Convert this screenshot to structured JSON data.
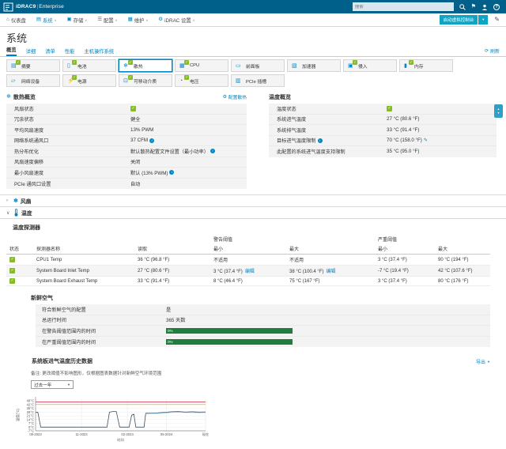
{
  "colors": {
    "accent": "#007db8",
    "topbar": "#00608a",
    "ok_green": "#86bc25",
    "bar_green": "#1f7e3d",
    "console_teal": "#0fa3c4"
  },
  "topbar": {
    "brand": "iDRAC9",
    "brand_sep": "|",
    "brand_suffix": "Enterprise",
    "search_placeholder": "搜索"
  },
  "menu": {
    "items": [
      {
        "label": "仪表盘",
        "icon": "home",
        "caret": false,
        "active": false
      },
      {
        "label": "系统",
        "icon": "system",
        "caret": true,
        "active": true
      },
      {
        "label": "存储",
        "icon": "storage",
        "caret": true,
        "active": false
      },
      {
        "label": "配置",
        "icon": "config",
        "caret": true,
        "active": false
      },
      {
        "label": "维护",
        "icon": "maintenance",
        "caret": true,
        "active": false
      },
      {
        "label": "iDRAC 设置",
        "icon": "settings",
        "caret": true,
        "active": false
      }
    ],
    "console_button": "启动虚拟控制台"
  },
  "page": {
    "title": "系统",
    "refresh_label": "刷新"
  },
  "tabs": [
    {
      "label": "概览",
      "active": true
    },
    {
      "label": "详细",
      "active": false
    },
    {
      "label": "清单",
      "active": false
    },
    {
      "label": "性能",
      "active": false
    },
    {
      "label": "主机操作系统",
      "active": false
    }
  ],
  "tiles": [
    [
      {
        "label": "摘要",
        "icon": "summary",
        "checked": true,
        "selected": false
      },
      {
        "label": "电池",
        "icon": "battery",
        "checked": true,
        "selected": false
      },
      {
        "label": "散热",
        "icon": "cooling",
        "checked": true,
        "selected": true
      },
      {
        "label": "CPU",
        "icon": "cpu",
        "checked": true,
        "selected": false
      },
      {
        "label": "前面板",
        "icon": "front-panel",
        "checked": false,
        "selected": false
      },
      {
        "label": "加速器",
        "icon": "accelerator",
        "checked": false,
        "selected": false
      },
      {
        "label": "侵入",
        "icon": "intrusion",
        "checked": true,
        "selected": false
      },
      {
        "label": "内存",
        "icon": "memory",
        "checked": true,
        "selected": false
      }
    ],
    [
      {
        "label": "网络设备",
        "icon": "network",
        "checked": false,
        "selected": false
      },
      {
        "label": "电源",
        "icon": "power",
        "checked": true,
        "selected": false
      },
      {
        "label": "可移动介质",
        "icon": "removable-media",
        "checked": true,
        "selected": false
      },
      {
        "label": "电压",
        "icon": "voltage",
        "checked": true,
        "selected": false
      },
      {
        "label": "PCIe 插槽",
        "icon": "pcie",
        "checked": false,
        "selected": false
      }
    ]
  ],
  "cooling_overview": {
    "title": "散热概览",
    "action": "配置散热",
    "rows": [
      {
        "label": "风扇状态",
        "status": true
      },
      {
        "label": "冗余状态",
        "value": "健全"
      },
      {
        "label": "平均风扇速度",
        "value": "13% PWM"
      },
      {
        "label": "网络系统通风口",
        "value": "37 CFM",
        "info": true
      },
      {
        "label": "热分布优化",
        "value": "默认散热配置文件设置（最小功率）",
        "info": true
      },
      {
        "label": "风扇速度偏移",
        "value": "关闭"
      },
      {
        "label": "最小风扇速度",
        "value": "默认 (13% PWM)",
        "info": true
      },
      {
        "label": "PCIe 通风口设置",
        "value": "自动"
      }
    ]
  },
  "temperature_overview": {
    "title": "温度概览",
    "rows": [
      {
        "label": "温度状态",
        "status": true
      },
      {
        "label": "系统进气温度",
        "value": "27 °C (80.6 °F)"
      },
      {
        "label": "系统排气温度",
        "value": "33 °C (91.4 °F)"
      },
      {
        "label": "目标进气温度限制",
        "label_info": true,
        "value": "70 °C (158.0 °F)",
        "edit": true
      },
      {
        "label": "此配置的系统进气温度支持限制",
        "value": "35 °C (95.0 °F)"
      }
    ]
  },
  "collapsibles": {
    "fans": "风扇",
    "temperature": "温度"
  },
  "probes": {
    "title": "温度探测器",
    "headers": {
      "status": "状态",
      "name": "探测器名称",
      "reading": "读取",
      "warning_group": "警告阈值",
      "critical_group": "严重阈值",
      "min": "最小",
      "max": "最大"
    },
    "edit_label": "编辑",
    "rows": [
      {
        "name": "CPU1 Temp",
        "reading": "36 °C (96.8 °F)",
        "warn_min": "不适用",
        "warn_min_edit": false,
        "warn_max": "不适用",
        "warn_max_edit": false,
        "crit_min": "3 °C (37.4 °F)",
        "crit_max": "90 °C (194 °F)"
      },
      {
        "name": "System Board Inlet Temp",
        "reading": "27 °C (80.6 °F)",
        "warn_min": "3 °C (37.4 °F)",
        "warn_min_edit": true,
        "warn_max": "38 °C (100.4 °F)",
        "warn_max_edit": true,
        "crit_min": "-7 °C (19.4 °F)",
        "crit_max": "42 °C (107.6 °F)"
      },
      {
        "name": "System Board Exhaust Temp",
        "reading": "33 °C (91.4 °F)",
        "warn_min": "8 °C (46.4 °F)",
        "warn_min_edit": false,
        "warn_max": "75 °C (167 °F)",
        "warn_max_edit": false,
        "crit_min": "3 °C (37.4 °F)",
        "crit_max": "80 °C (176 °F)"
      }
    ]
  },
  "fresh_air": {
    "title": "新鲜空气",
    "rows": [
      {
        "label": "符合新鲜空气的配置",
        "value": "是"
      },
      {
        "label": "总运行时间",
        "value": "365 天数"
      },
      {
        "label": "在警告阈值范围内的时间",
        "bar": "0%"
      },
      {
        "label": "在严重阈值范围内的时间",
        "bar": "0%"
      }
    ]
  },
  "history": {
    "title": "系统板进气温度历史数据",
    "export_label": "导出",
    "note": "备注: 更改阈值不影响图形，仅根据图表数据针对新鲜空气环境范围",
    "range_value": "过去一年"
  },
  "chart_data": {
    "type": "line",
    "title": "系统板进气温度历史数据",
    "xlabel": "时间",
    "ylabel": "温度(°C)",
    "x_ticks": [
      "09-2023",
      "11-2023",
      "02-2024",
      "05-2024",
      "现在"
    ],
    "x_tick_pos": [
      0,
      0.27,
      0.54,
      0.77,
      1
    ],
    "y_ticks": [
      49,
      42,
      35,
      28,
      21,
      14,
      7,
      0,
      -7
    ],
    "ylim": [
      -7,
      52
    ],
    "grid": true,
    "legend": "none",
    "thresholds": [
      {
        "name": "critical-max",
        "value": 47,
        "color": "#cc2936"
      },
      {
        "name": "warning-max",
        "value": 42,
        "color": "#f2a33c"
      }
    ],
    "series": [
      {
        "name": "inlet-temp",
        "color": "#3a4e5f",
        "points": [
          [
            0,
            27
          ],
          [
            0.013,
            28
          ],
          [
            0.03,
            0
          ],
          [
            0.42,
            0
          ],
          [
            0.435,
            28
          ],
          [
            0.455,
            29
          ],
          [
            0.475,
            29
          ],
          [
            0.495,
            0
          ],
          [
            0.55,
            0
          ],
          [
            0.565,
            22
          ],
          [
            0.578,
            24
          ],
          [
            0.59,
            0
          ],
          [
            0.638,
            0
          ],
          [
            0.648,
            25.8
          ],
          [
            0.68,
            26
          ],
          [
            0.72,
            26.5
          ],
          [
            0.76,
            27.5
          ],
          [
            0.8,
            28.5
          ],
          [
            0.84,
            29
          ],
          [
            0.88,
            28
          ],
          [
            0.92,
            28.5
          ],
          [
            0.96,
            28
          ],
          [
            1,
            28.3
          ]
        ]
      },
      {
        "name": "inlet-temp-secondary",
        "color": "#8fc3e0",
        "points": [
          [
            0.648,
            24.8
          ],
          [
            0.68,
            25.2
          ],
          [
            0.72,
            25.6
          ],
          [
            0.76,
            26.5
          ],
          [
            0.8,
            27.3
          ],
          [
            0.84,
            27.8
          ],
          [
            0.88,
            27
          ],
          [
            0.92,
            27.3
          ],
          [
            0.96,
            26.8
          ],
          [
            1,
            27.2
          ]
        ]
      }
    ]
  }
}
